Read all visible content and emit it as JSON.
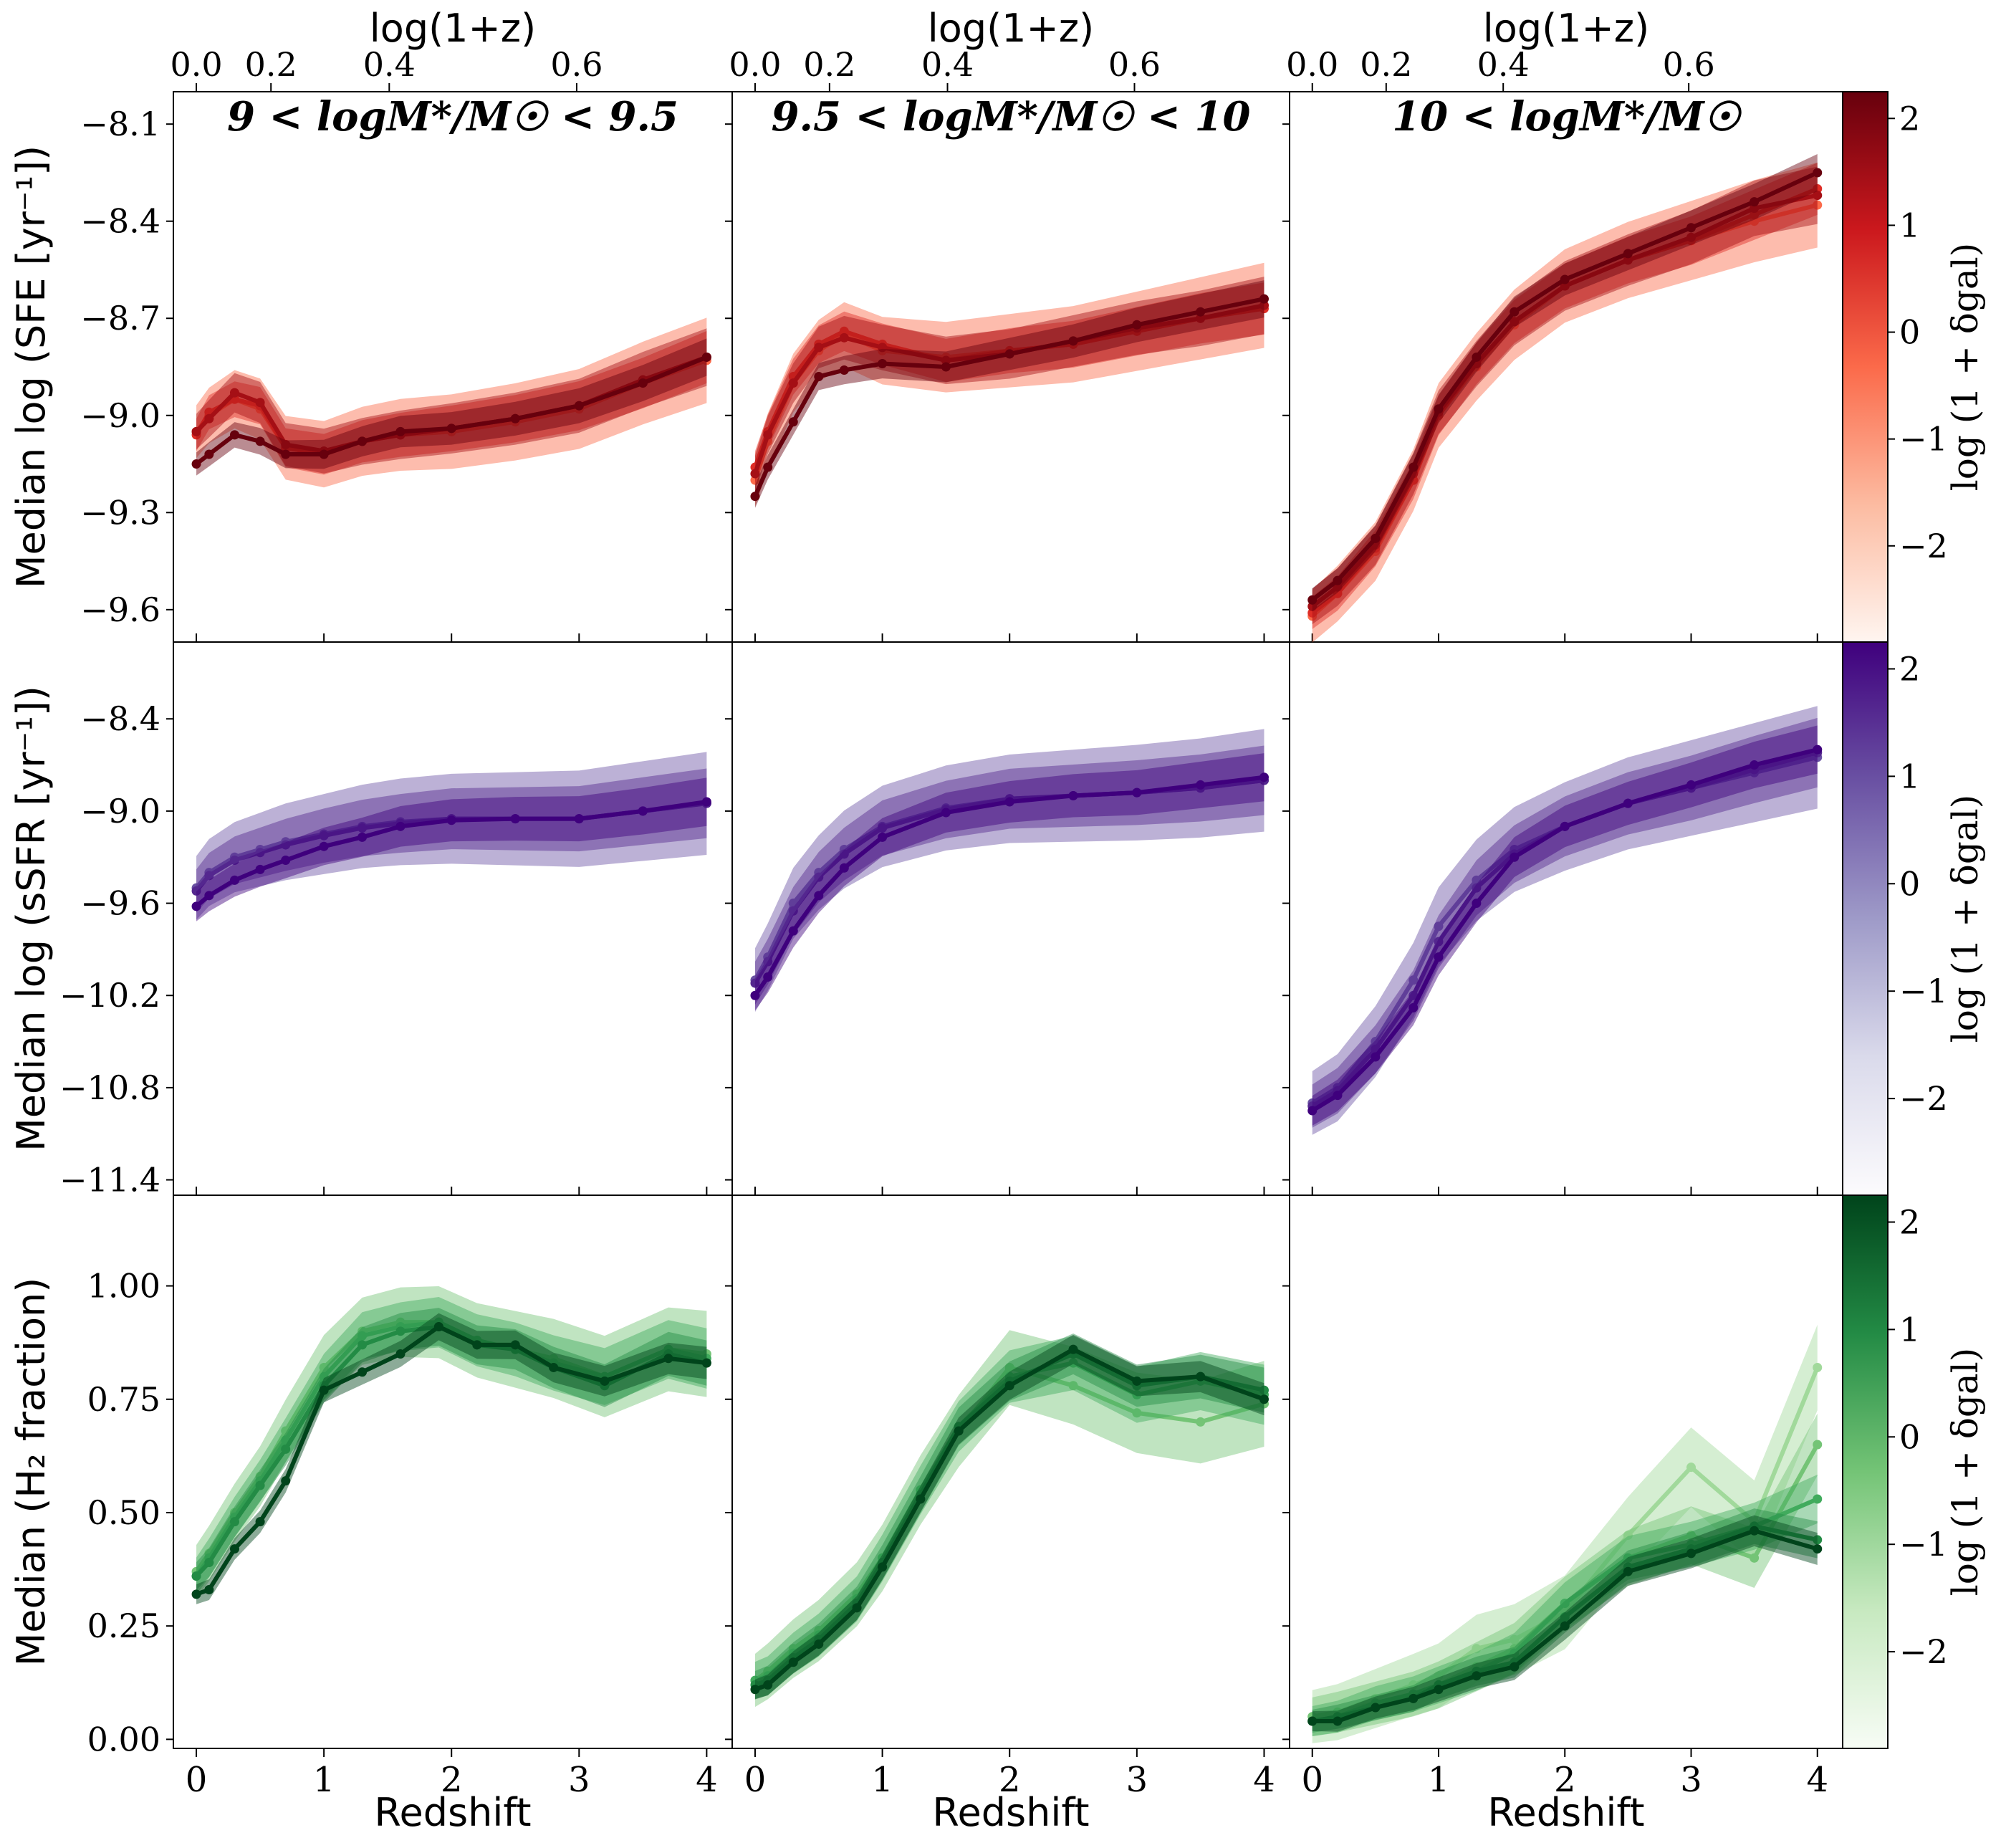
{
  "figure": {
    "rows": [
      {
        "id": "sfe",
        "ylabel": "Median log (SFE [yr⁻¹])",
        "yticks": [
          -8.1,
          -8.4,
          -8.7,
          -9.0,
          -9.3,
          -9.6
        ],
        "ylim": [
          -9.7,
          -8.0
        ],
        "cmap": "reds",
        "colorbar_ticks": [
          2,
          1,
          0,
          -1,
          -2
        ],
        "colorbar_label": "log (1 + δgal)"
      },
      {
        "id": "ssfr",
        "ylabel": "Median log (sSFR [yr⁻¹])",
        "yticks": [
          -8.4,
          -9.0,
          -9.6,
          -10.2,
          -10.8,
          -11.4
        ],
        "ylim": [
          -11.5,
          -7.9
        ],
        "cmap": "purples",
        "colorbar_ticks": [
          2,
          1,
          0,
          -1,
          -2
        ],
        "colorbar_label": "log (1 + δgal)"
      },
      {
        "id": "h2",
        "ylabel": "Median (H₂ fraction)",
        "yticks": [
          1.0,
          0.75,
          0.5,
          0.25,
          0.0
        ],
        "ylim": [
          -0.02,
          1.2
        ],
        "cmap": "greens",
        "colorbar_ticks": [
          2,
          1,
          0,
          -1,
          -2
        ],
        "colorbar_label": "log (1 + δgal)"
      }
    ],
    "columns": [
      {
        "title": "9 < logM*/M☉ < 9.5"
      },
      {
        "title": "9.5 < logM*/M☉ < 10"
      },
      {
        "title": "10 < logM*/M☉"
      }
    ],
    "xlabel": "Redshift",
    "xticks": [
      0,
      1,
      2,
      3,
      4
    ],
    "top_xlabel": "log(1+z)",
    "top_xticks": [
      "0.0",
      "0.2",
      "0.4",
      "0.6"
    ],
    "colors": {
      "reds": [
        "#fcbba1",
        "#fb6a4a",
        "#de2d26",
        "#a50f15",
        "#67000d"
      ],
      "purples": [
        "#bcbddc",
        "#807dba",
        "#6a51a3",
        "#54278f",
        "#3f007d"
      ],
      "greens": [
        "#a1d99b",
        "#74c476",
        "#41ab5d",
        "#238b45",
        "#00441b"
      ]
    }
  },
  "chart_data": [
    {
      "type": "line",
      "row": "sfe",
      "col": 1,
      "x": [
        0,
        0.1,
        0.3,
        0.5,
        0.7,
        1.0,
        1.3,
        1.6,
        2.0,
        2.5,
        3.0,
        3.5,
        4.0
      ],
      "series": [
        {
          "values": [
            -9.05,
            -9.0,
            -8.95,
            -8.98,
            -9.1,
            -9.12,
            -9.08,
            -9.06,
            -9.05,
            -9.02,
            -8.98,
            -8.9,
            -8.83
          ]
        },
        {
          "values": [
            -9.06,
            -8.99,
            -8.95,
            -8.97,
            -9.1,
            -9.12,
            -9.08,
            -9.06,
            -9.04,
            -9.01,
            -8.97,
            -8.9,
            -8.82
          ]
        },
        {
          "values": [
            -9.05,
            -9.01,
            -8.93,
            -8.96,
            -9.09,
            -9.11,
            -9.08,
            -9.06,
            -9.04,
            -9.01,
            -8.97,
            -8.89,
            -8.82
          ]
        },
        {
          "values": [
            -9.15,
            -9.12,
            -9.06,
            -9.08,
            -9.12,
            -9.12,
            -9.08,
            -9.05,
            -9.04,
            -9.01,
            -8.97,
            -8.9,
            -8.82
          ]
        }
      ]
    },
    {
      "type": "line",
      "row": "sfe",
      "col": 2,
      "x": [
        0,
        0.1,
        0.3,
        0.5,
        0.7,
        1.0,
        1.5,
        2.0,
        2.5,
        3.0,
        3.5,
        4.0
      ],
      "series": [
        {
          "values": [
            -9.2,
            -9.08,
            -8.9,
            -8.8,
            -8.75,
            -8.8,
            -8.82,
            -8.8,
            -8.78,
            -8.74,
            -8.7,
            -8.66
          ]
        },
        {
          "values": [
            -9.16,
            -9.05,
            -8.88,
            -8.78,
            -8.74,
            -8.78,
            -8.83,
            -8.8,
            -8.78,
            -8.74,
            -8.7,
            -8.67
          ]
        },
        {
          "values": [
            -9.18,
            -9.06,
            -8.9,
            -8.79,
            -8.76,
            -8.79,
            -8.83,
            -8.81,
            -8.77,
            -8.73,
            -8.7,
            -8.66
          ]
        },
        {
          "values": [
            -9.25,
            -9.16,
            -9.02,
            -8.88,
            -8.86,
            -8.84,
            -8.85,
            -8.81,
            -8.77,
            -8.72,
            -8.68,
            -8.64
          ]
        }
      ]
    },
    {
      "type": "line",
      "row": "sfe",
      "col": 3,
      "x": [
        0,
        0.2,
        0.5,
        0.8,
        1.0,
        1.3,
        1.6,
        2.0,
        2.5,
        3.0,
        3.5,
        4.0
      ],
      "series": [
        {
          "values": [
            -9.62,
            -9.55,
            -9.42,
            -9.2,
            -9.0,
            -8.85,
            -8.72,
            -8.6,
            -8.52,
            -8.46,
            -8.4,
            -8.35
          ]
        },
        {
          "values": [
            -9.61,
            -9.55,
            -9.41,
            -9.2,
            -9.0,
            -8.84,
            -8.71,
            -8.6,
            -8.52,
            -8.46,
            -8.38,
            -8.3
          ]
        },
        {
          "values": [
            -9.59,
            -9.53,
            -9.4,
            -9.18,
            -8.99,
            -8.84,
            -8.71,
            -8.6,
            -8.52,
            -8.45,
            -8.36,
            -8.32
          ]
        },
        {
          "values": [
            -9.57,
            -9.51,
            -9.38,
            -9.16,
            -8.98,
            -8.82,
            -8.68,
            -8.58,
            -8.5,
            -8.42,
            -8.34,
            -8.25
          ]
        }
      ]
    },
    {
      "type": "line",
      "row": "ssfr",
      "col": 1,
      "x": [
        0,
        0.1,
        0.3,
        0.5,
        0.7,
        1.0,
        1.3,
        1.6,
        2.0,
        2.5,
        3.0,
        3.5,
        4.0
      ],
      "series": [
        {
          "values": [
            -9.5,
            -9.4,
            -9.3,
            -9.25,
            -9.2,
            -9.15,
            -9.1,
            -9.07,
            -9.05,
            -9.05,
            -9.05,
            -9.0,
            -8.95
          ]
        },
        {
          "values": [
            -9.52,
            -9.42,
            -9.32,
            -9.27,
            -9.22,
            -9.16,
            -9.11,
            -9.08,
            -9.05,
            -9.05,
            -9.05,
            -9.0,
            -8.95
          ]
        },
        {
          "values": [
            -9.62,
            -9.55,
            -9.45,
            -9.38,
            -9.32,
            -9.23,
            -9.17,
            -9.1,
            -9.06,
            -9.05,
            -9.05,
            -9.0,
            -8.94
          ]
        }
      ]
    },
    {
      "type": "line",
      "row": "ssfr",
      "col": 2,
      "x": [
        0,
        0.1,
        0.3,
        0.5,
        0.7,
        1.0,
        1.5,
        2.0,
        2.5,
        3.0,
        3.5,
        4.0
      ],
      "series": [
        {
          "values": [
            -10.1,
            -9.95,
            -9.6,
            -9.4,
            -9.25,
            -9.1,
            -8.98,
            -8.92,
            -8.9,
            -8.88,
            -8.85,
            -8.8
          ]
        },
        {
          "values": [
            -10.12,
            -9.98,
            -9.65,
            -9.43,
            -9.28,
            -9.11,
            -8.99,
            -8.92,
            -8.9,
            -8.88,
            -8.85,
            -8.8
          ]
        },
        {
          "values": [
            -10.2,
            -10.08,
            -9.78,
            -9.55,
            -9.37,
            -9.17,
            -9.01,
            -8.94,
            -8.9,
            -8.88,
            -8.83,
            -8.78
          ]
        }
      ]
    },
    {
      "type": "line",
      "row": "ssfr",
      "col": 3,
      "x": [
        0,
        0.2,
        0.5,
        0.8,
        1.0,
        1.3,
        1.6,
        2.0,
        2.5,
        3.0,
        3.5,
        4.0
      ],
      "series": [
        {
          "values": [
            -10.9,
            -10.8,
            -10.5,
            -10.1,
            -9.75,
            -9.45,
            -9.25,
            -9.1,
            -8.95,
            -8.85,
            -8.75,
            -8.65
          ]
        },
        {
          "values": [
            -10.92,
            -10.82,
            -10.55,
            -10.2,
            -9.85,
            -9.5,
            -9.28,
            -9.1,
            -8.95,
            -8.85,
            -8.73,
            -8.62
          ]
        },
        {
          "values": [
            -10.95,
            -10.85,
            -10.6,
            -10.28,
            -9.95,
            -9.6,
            -9.3,
            -9.1,
            -8.95,
            -8.83,
            -8.7,
            -8.6
          ]
        }
      ]
    },
    {
      "type": "line",
      "row": "h2",
      "col": 1,
      "x": [
        0,
        0.1,
        0.3,
        0.5,
        0.7,
        1.0,
        1.3,
        1.6,
        1.9,
        2.2,
        2.5,
        2.8,
        3.2,
        3.7,
        4.0
      ],
      "series": [
        {
          "values": [
            0.37,
            0.41,
            0.5,
            0.58,
            0.68,
            0.82,
            0.9,
            0.92,
            0.92,
            0.88,
            0.86,
            0.84,
            0.8,
            0.86,
            0.85
          ]
        },
        {
          "values": [
            0.36,
            0.4,
            0.49,
            0.57,
            0.66,
            0.8,
            0.89,
            0.91,
            0.92,
            0.88,
            0.86,
            0.83,
            0.8,
            0.86,
            0.84
          ]
        },
        {
          "values": [
            0.36,
            0.39,
            0.48,
            0.56,
            0.64,
            0.78,
            0.87,
            0.9,
            0.91,
            0.87,
            0.86,
            0.82,
            0.78,
            0.85,
            0.83
          ]
        },
        {
          "values": [
            0.32,
            0.33,
            0.42,
            0.48,
            0.57,
            0.77,
            0.81,
            0.85,
            0.91,
            0.87,
            0.87,
            0.82,
            0.79,
            0.84,
            0.83
          ]
        }
      ]
    },
    {
      "type": "line",
      "row": "h2",
      "col": 2,
      "x": [
        0,
        0.1,
        0.3,
        0.5,
        0.8,
        1.0,
        1.3,
        1.6,
        2.0,
        2.5,
        3.0,
        3.5,
        4.0
      ],
      "series": [
        {
          "values": [
            0.13,
            0.15,
            0.2,
            0.24,
            0.32,
            0.4,
            0.55,
            0.68,
            0.82,
            0.78,
            0.72,
            0.7,
            0.74
          ]
        },
        {
          "values": [
            0.13,
            0.14,
            0.19,
            0.23,
            0.31,
            0.4,
            0.55,
            0.69,
            0.8,
            0.83,
            0.76,
            0.79,
            0.76
          ]
        },
        {
          "values": [
            0.12,
            0.13,
            0.18,
            0.22,
            0.3,
            0.39,
            0.54,
            0.69,
            0.79,
            0.85,
            0.78,
            0.8,
            0.77
          ]
        },
        {
          "values": [
            0.11,
            0.12,
            0.17,
            0.21,
            0.29,
            0.38,
            0.53,
            0.68,
            0.78,
            0.86,
            0.79,
            0.8,
            0.75
          ]
        }
      ]
    },
    {
      "type": "line",
      "row": "h2",
      "col": 3,
      "x": [
        0,
        0.2,
        0.5,
        0.8,
        1.0,
        1.3,
        1.6,
        2.0,
        2.5,
        3.0,
        3.5,
        4.0
      ],
      "series": [
        {
          "values": [
            0.05,
            0.06,
            0.09,
            0.12,
            0.14,
            0.2,
            0.22,
            0.28,
            0.45,
            0.6,
            0.48,
            0.82
          ]
        },
        {
          "values": [
            0.05,
            0.06,
            0.08,
            0.1,
            0.12,
            0.16,
            0.2,
            0.3,
            0.4,
            0.45,
            0.4,
            0.65
          ]
        },
        {
          "values": [
            0.04,
            0.05,
            0.08,
            0.1,
            0.12,
            0.15,
            0.19,
            0.3,
            0.4,
            0.43,
            0.47,
            0.53
          ]
        },
        {
          "values": [
            0.04,
            0.05,
            0.07,
            0.09,
            0.12,
            0.15,
            0.17,
            0.27,
            0.38,
            0.42,
            0.47,
            0.44
          ]
        },
        {
          "values": [
            0.04,
            0.04,
            0.07,
            0.09,
            0.11,
            0.14,
            0.16,
            0.25,
            0.37,
            0.41,
            0.46,
            0.42
          ]
        }
      ]
    }
  ]
}
